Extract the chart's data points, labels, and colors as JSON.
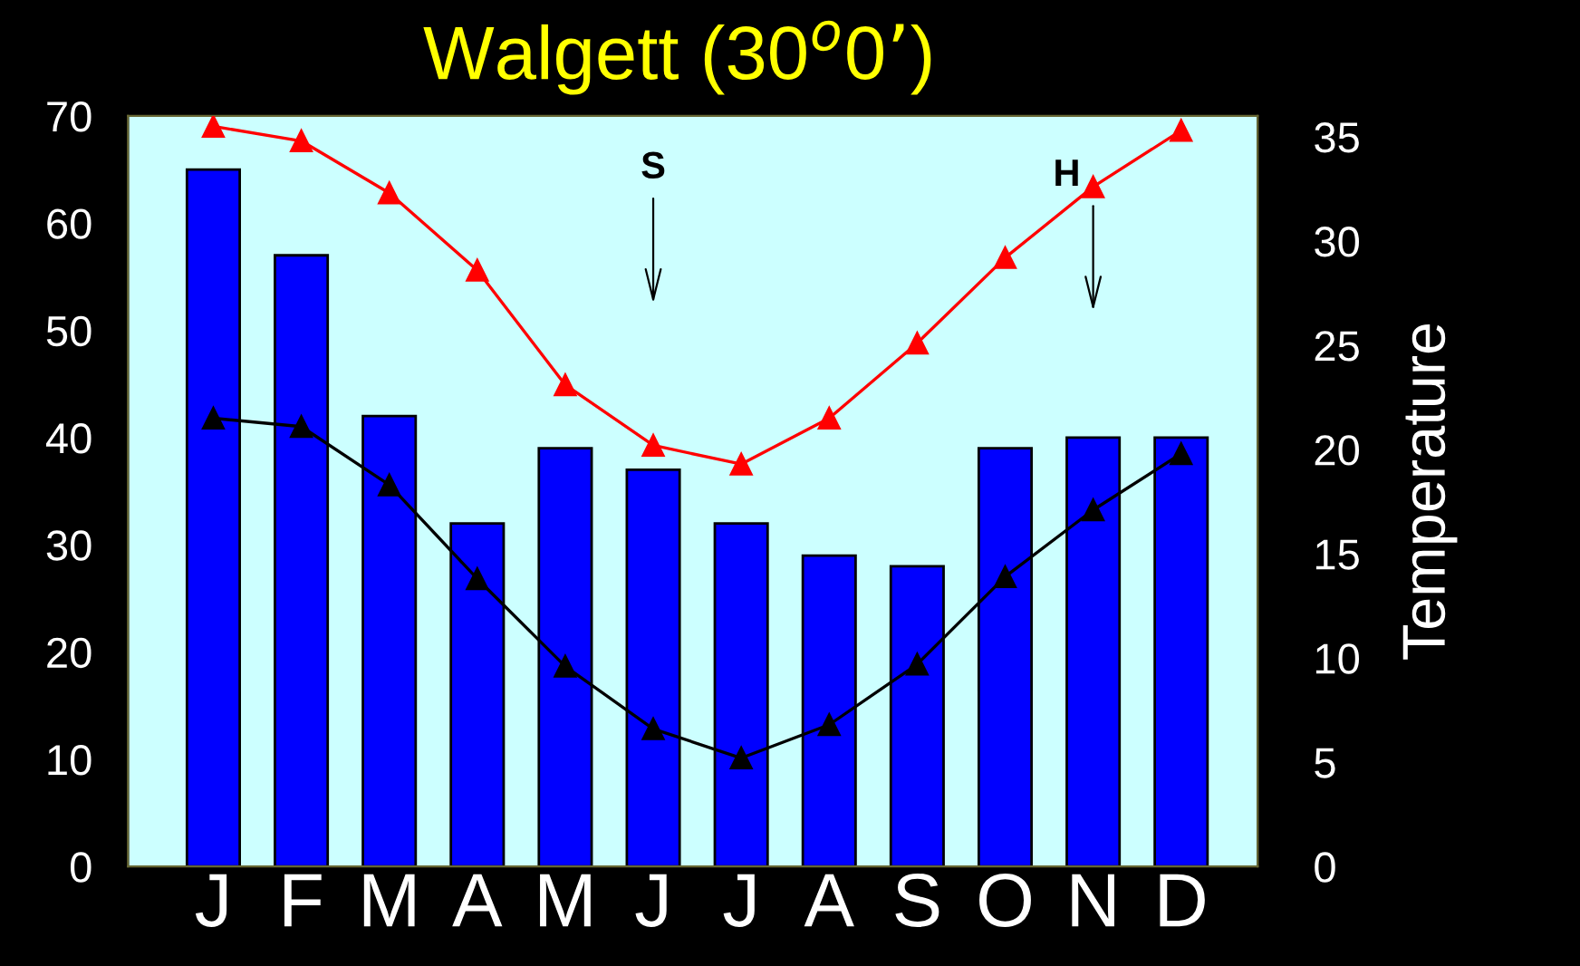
{
  "chart_data": {
    "type": "bar",
    "title": "Walgett (30$^{o}$0’)",
    "y2label": "Temperature",
    "categories": [
      "J",
      "F",
      "M",
      "A",
      "M",
      "J",
      "J",
      "A",
      "S",
      "O",
      "N",
      "D"
    ],
    "series": [
      {
        "color": "#0000ff",
        "values": [
          65,
          57,
          42,
          32,
          39,
          37,
          32,
          29,
          28,
          39,
          40,
          40
        ]
      },
      {
        "type": "line",
        "axis": "y2",
        "color": "#ff0000",
        "marker": "triangle",
        "values": [
          35.5,
          34.8,
          32.3,
          28.6,
          23.1,
          20.2,
          19.3,
          21.5,
          25.1,
          29.2,
          32.6,
          35.3
        ]
      },
      {
        "type": "line",
        "axis": "y2",
        "color": "#000000",
        "marker": "triangle",
        "values": [
          21.5,
          21.1,
          18.3,
          13.8,
          9.6,
          6.6,
          5.2,
          6.8,
          9.7,
          13.9,
          17.1,
          19.8
        ]
      }
    ],
    "ylim": [
      0,
      70
    ],
    "yticks": [
      0,
      10,
      20,
      30,
      40,
      50,
      60,
      70
    ],
    "y2lim": [
      0,
      36
    ],
    "y2ticks": [
      0,
      5,
      10,
      15,
      20,
      25,
      30,
      35
    ],
    "annotations": [
      "S",
      "H"
    ],
    "grid": false,
    "legend": false
  }
}
